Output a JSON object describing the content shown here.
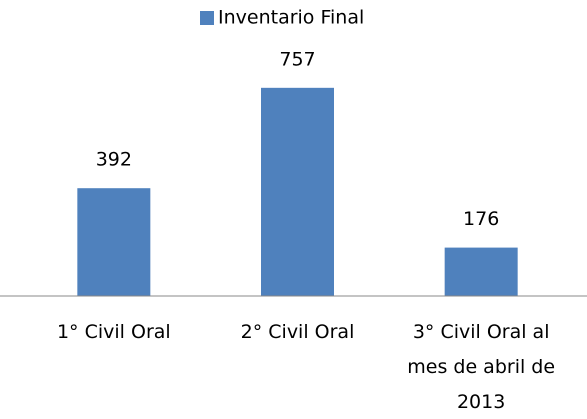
{
  "chart_data": {
    "type": "bar",
    "legend": "Inventario Final",
    "categories": [
      "1° Civil Oral",
      "2° Civil Oral",
      "3° Civil Oral al mes de abril de 2013"
    ],
    "values": [
      392,
      757,
      176
    ],
    "color": "#4f81bd",
    "ylim": [
      0,
      800
    ],
    "legend_position": "top"
  }
}
